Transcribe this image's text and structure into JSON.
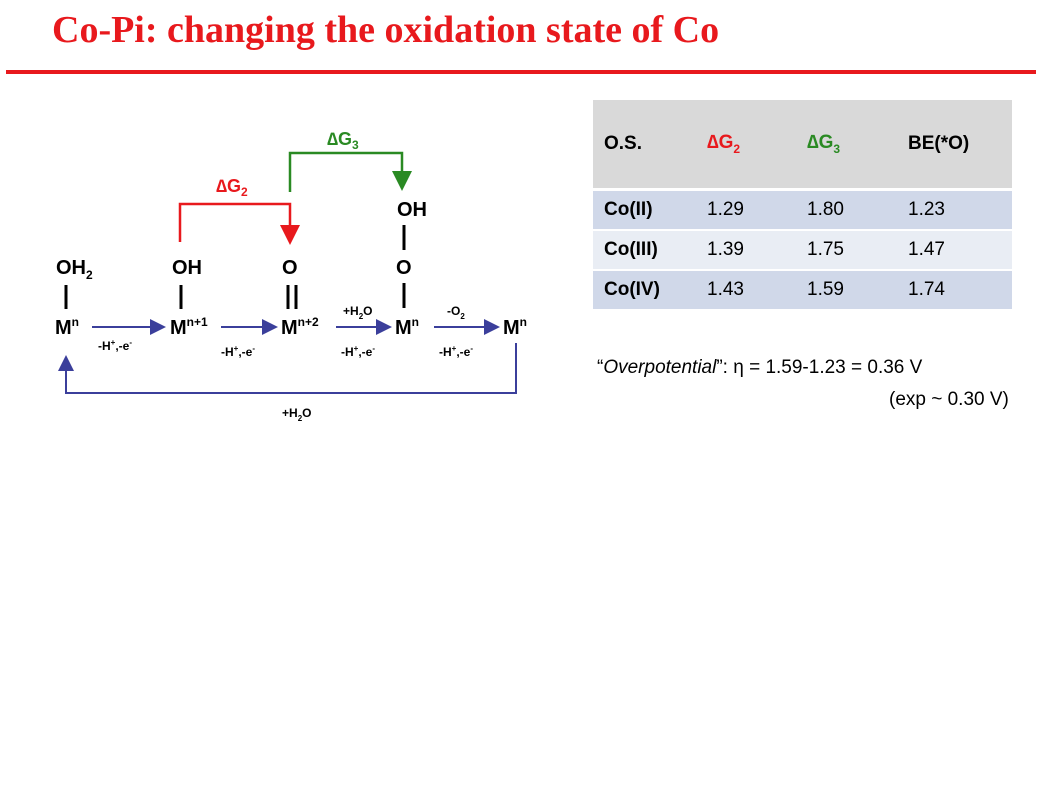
{
  "slide": {
    "title": "Co-Pi: changing the oxidation state of Co"
  },
  "diagram": {
    "delta_g2": {
      "symbol": "∆G",
      "sub": "2"
    },
    "delta_g3": {
      "symbol": "∆G",
      "sub": "3"
    },
    "ligands": {
      "oh2": "OH",
      "oh2_sub": "2",
      "oh": "OH",
      "o_double": "O",
      "o": "O",
      "oh_top": "OH"
    },
    "metals": [
      {
        "base": "M",
        "sup": "n"
      },
      {
        "base": "M",
        "sup": "n+1"
      },
      {
        "base": "M",
        "sup": "n+2"
      },
      {
        "base": "M",
        "sup": "n"
      },
      {
        "base": "M",
        "sup": "n"
      }
    ],
    "steps": [
      {
        "below": "-H",
        "below_sup1": "+",
        "below_mid": ",-e",
        "below_sup2": "-"
      },
      {
        "below": "-H",
        "below_sup1": "+",
        "below_mid": ",-e",
        "below_sup2": "-"
      },
      {
        "above": "+H",
        "above_sub": "2",
        "above_end": "O",
        "below": "-H",
        "below_sup1": "+",
        "below_mid": ",-e",
        "below_sup2": "-"
      },
      {
        "above": "-O",
        "above_sub": "2",
        "below": "-H",
        "below_sup1": "+",
        "below_mid": ",-e",
        "below_sup2": "-"
      }
    ],
    "return_label": {
      "pre": "+H",
      "sub": "2",
      "post": "O"
    },
    "colors": {
      "red": "#e8191d",
      "green": "#2a8a23",
      "blue": "#3b3f9b"
    }
  },
  "table": {
    "headers": [
      "O.S.",
      "∆G",
      "2",
      "∆G",
      "3",
      "BE(*O)"
    ],
    "rows": [
      [
        "Co(II)",
        "1.29",
        "1.80",
        "1.23"
      ],
      [
        "Co(III)",
        "1.39",
        "1.75",
        "1.47"
      ],
      [
        "Co(IV)",
        "1.43",
        "1.59",
        "1.74"
      ]
    ]
  },
  "notes": {
    "quote_open": "“",
    "overpotential_label": "Overpotential",
    "quote_close": "”",
    "formula": ": η = 1.59-1.23 = 0.36 V",
    "experiment": "(exp ~ 0.30 V)"
  }
}
